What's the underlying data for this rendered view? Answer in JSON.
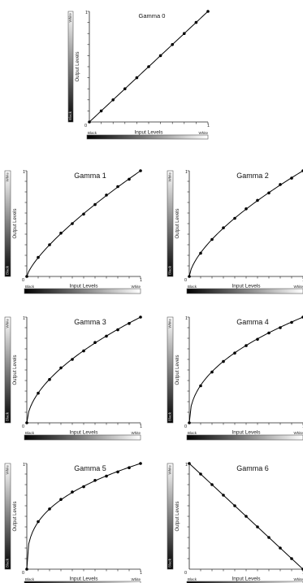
{
  "chart_data": [
    {
      "type": "line",
      "title": "Gamma 0",
      "gamma": 1.0,
      "xlabel": "Input Levels",
      "ylabel": "Output Levels",
      "x_low_label": "Black",
      "x_high_label": "White",
      "y_low_label": "Black",
      "y_high_label": "White",
      "origin_label": "0",
      "x_max_label": "1",
      "y_max_label": "1",
      "x": [
        0,
        0.1,
        0.2,
        0.3,
        0.4,
        0.5,
        0.6,
        0.7,
        0.8,
        0.9,
        1.0
      ],
      "y": [
        0,
        0.1,
        0.2,
        0.3,
        0.4,
        0.5,
        0.6,
        0.7,
        0.8,
        0.9,
        1.0
      ]
    },
    {
      "type": "line",
      "title": "Gamma 1",
      "gamma": 0.75,
      "xlabel": "Input Levels",
      "ylabel": "Output Levels",
      "x_low_label": "Black",
      "x_high_label": "White",
      "y_low_label": "Black",
      "y_high_label": "White",
      "origin_label": "0",
      "x_max_label": "1",
      "y_max_label": "1",
      "x": [
        0,
        0.1,
        0.2,
        0.3,
        0.4,
        0.5,
        0.6,
        0.7,
        0.8,
        0.9,
        1.0
      ],
      "y": [
        0,
        0.18,
        0.3,
        0.41,
        0.5,
        0.59,
        0.68,
        0.77,
        0.85,
        0.92,
        1.0
      ]
    },
    {
      "type": "line",
      "title": "Gamma 2",
      "gamma": 0.65,
      "xlabel": "Input Levels",
      "ylabel": "Output Levels",
      "x_low_label": "Black",
      "x_high_label": "White",
      "y_low_label": "Black",
      "y_high_label": "White",
      "origin_label": "0",
      "x_max_label": "1",
      "y_max_label": "1",
      "x": [
        0,
        0.1,
        0.2,
        0.3,
        0.4,
        0.5,
        0.6,
        0.7,
        0.8,
        0.9,
        1.0
      ],
      "y": [
        0,
        0.22,
        0.35,
        0.46,
        0.55,
        0.64,
        0.72,
        0.79,
        0.87,
        0.93,
        1.0
      ]
    },
    {
      "type": "line",
      "title": "Gamma 3",
      "gamma": 0.55,
      "xlabel": "Input Levels",
      "ylabel": "Output Levels",
      "x_low_label": "Black",
      "x_high_label": "White",
      "y_low_label": "Black",
      "y_high_label": "White",
      "origin_label": "0",
      "x_max_label": "1",
      "y_max_label": "1",
      "x": [
        0,
        0.1,
        0.2,
        0.3,
        0.4,
        0.5,
        0.6,
        0.7,
        0.8,
        0.9,
        1.0
      ],
      "y": [
        0,
        0.28,
        0.41,
        0.52,
        0.6,
        0.68,
        0.76,
        0.82,
        0.88,
        0.94,
        1.0
      ]
    },
    {
      "type": "line",
      "title": "Gamma 4",
      "gamma": 0.45,
      "xlabel": "Input Levels",
      "ylabel": "Output Levels",
      "x_low_label": "Black",
      "x_high_label": "White",
      "y_low_label": "Black",
      "y_high_label": "White",
      "origin_label": "0",
      "x_max_label": "1",
      "y_max_label": "1",
      "x": [
        0,
        0.1,
        0.2,
        0.3,
        0.4,
        0.5,
        0.6,
        0.7,
        0.8,
        0.9,
        1.0
      ],
      "y": [
        0,
        0.35,
        0.48,
        0.58,
        0.66,
        0.73,
        0.79,
        0.85,
        0.9,
        0.95,
        1.0
      ]
    },
    {
      "type": "line",
      "title": "Gamma 5",
      "gamma": 0.35,
      "xlabel": "Input Levels",
      "ylabel": "Output Levels",
      "x_low_label": "Black",
      "x_high_label": "White",
      "y_low_label": "Black",
      "y_high_label": "White",
      "origin_label": "0",
      "x_max_label": "1",
      "y_max_label": "1",
      "x": [
        0,
        0.1,
        0.2,
        0.3,
        0.4,
        0.5,
        0.6,
        0.7,
        0.8,
        0.9,
        1.0
      ],
      "y": [
        0,
        0.45,
        0.57,
        0.66,
        0.73,
        0.78,
        0.84,
        0.88,
        0.92,
        0.96,
        1.0
      ]
    },
    {
      "type": "line",
      "title": "Gamma 6",
      "gamma": null,
      "xlabel": "Input Levels",
      "ylabel": "Output Levels",
      "x_low_label": "Black",
      "x_high_label": "White",
      "y_low_label": "Black",
      "y_high_label": "White",
      "origin_label": "0",
      "x_max_label": "1",
      "y_max_label": "1",
      "x": [
        0,
        0.1,
        0.2,
        0.3,
        0.4,
        0.5,
        0.6,
        0.7,
        0.8,
        0.9,
        1.0
      ],
      "y": [
        1.0,
        0.9,
        0.8,
        0.7,
        0.6,
        0.5,
        0.4,
        0.3,
        0.2,
        0.1,
        0
      ]
    }
  ]
}
